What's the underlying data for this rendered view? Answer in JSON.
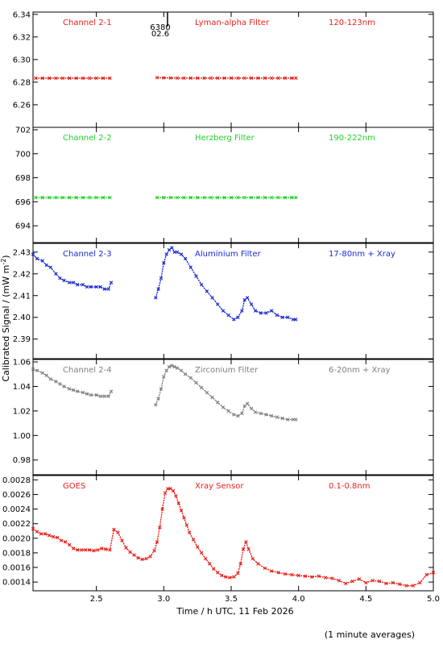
{
  "page": {
    "ylabel_prefix": "Calibrated Signal / (mW m",
    "ylabel_sup": "-2",
    "ylabel_suffix": ")",
    "xlabel": "Time / h UTC, 11 Feb 2026",
    "footnote": "(1 minute averages)",
    "marker_label_top": "6380",
    "marker_label_bottom": "02.6"
  },
  "chart_data": [
    {
      "type": "scatter",
      "label_left": "Channel 2-1",
      "label_mid": "Lyman-alpha Filter",
      "label_right": "120-123nm",
      "color": "#e8201a",
      "ylim": [
        6.24,
        6.342
      ],
      "yticks": [
        "6.26",
        "6.28",
        "6.30",
        "6.32",
        "6.34"
      ],
      "ytick_values": [
        6.26,
        6.28,
        6.3,
        6.32,
        6.34
      ],
      "series": [
        {
          "x": [
            2.05,
            2.1,
            2.15,
            2.2,
            2.25,
            2.3,
            2.35,
            2.4,
            2.45,
            2.5,
            2.55,
            2.6
          ],
          "y": [
            6.2835,
            6.2835,
            6.2835,
            6.2835,
            6.2835,
            6.2835,
            6.2835,
            6.2835,
            6.2835,
            6.2835,
            6.2835,
            6.2835
          ]
        },
        {
          "x": [
            2.95,
            3.0,
            3.05,
            3.1,
            3.15,
            3.2,
            3.25,
            3.3,
            3.35,
            3.4,
            3.45,
            3.5,
            3.55,
            3.6,
            3.65,
            3.7,
            3.75,
            3.8,
            3.85,
            3.9,
            3.95,
            3.98
          ],
          "y": [
            6.284,
            6.2838,
            6.2837,
            6.2836,
            6.2836,
            6.2836,
            6.2836,
            6.2836,
            6.2836,
            6.2836,
            6.2836,
            6.2836,
            6.2836,
            6.2836,
            6.2836,
            6.2836,
            6.2836,
            6.2836,
            6.2836,
            6.2836,
            6.2836,
            6.2836
          ]
        }
      ]
    },
    {
      "type": "scatter",
      "label_left": "Channel 2-2",
      "label_mid": "Herzberg Filter",
      "label_right": "190-222nm",
      "color": "#22d22a",
      "ylim": [
        692.6,
        702.2
      ],
      "yticks": [
        "694",
        "696",
        "698",
        "700",
        "702"
      ],
      "ytick_values": [
        694,
        696,
        698,
        700,
        702
      ],
      "series": [
        {
          "x": [
            2.05,
            2.1,
            2.15,
            2.2,
            2.25,
            2.3,
            2.35,
            2.4,
            2.45,
            2.5,
            2.55,
            2.6
          ],
          "y": [
            696.35,
            696.35,
            696.35,
            696.35,
            696.35,
            696.35,
            696.35,
            696.35,
            696.35,
            696.35,
            696.35,
            696.35
          ]
        },
        {
          "x": [
            2.95,
            3.0,
            3.05,
            3.1,
            3.15,
            3.2,
            3.25,
            3.3,
            3.35,
            3.4,
            3.45,
            3.5,
            3.55,
            3.6,
            3.65,
            3.7,
            3.75,
            3.8,
            3.85,
            3.9,
            3.95,
            3.98
          ],
          "y": [
            696.35,
            696.35,
            696.35,
            696.35,
            696.35,
            696.35,
            696.35,
            696.35,
            696.35,
            696.35,
            696.35,
            696.35,
            696.35,
            696.35,
            696.35,
            696.35,
            696.35,
            696.35,
            696.35,
            696.35,
            696.35,
            696.35
          ]
        }
      ]
    },
    {
      "type": "scatter",
      "label_left": "Channel 2-3",
      "label_mid": "Aluminium Filter",
      "label_right": "17-80nm + Xray",
      "color": "#1a2ad2",
      "ylim": [
        2.381,
        2.434
      ],
      "yticks": [
        "2.39",
        "2.40",
        "2.41",
        "2.42",
        "2.43"
      ],
      "ytick_values": [
        2.39,
        2.4,
        2.41,
        2.42,
        2.43
      ],
      "series": [
        {
          "x": [
            2.03,
            2.06,
            2.1,
            2.13,
            2.16,
            2.2,
            2.23,
            2.26,
            2.3,
            2.33,
            2.36,
            2.4,
            2.43,
            2.46,
            2.5,
            2.53,
            2.56,
            2.59,
            2.61
          ],
          "y": [
            2.429,
            2.427,
            2.426,
            2.424,
            2.423,
            2.42,
            2.418,
            2.417,
            2.416,
            2.416,
            2.415,
            2.415,
            2.414,
            2.414,
            2.414,
            2.414,
            2.413,
            2.413,
            2.416
          ]
        },
        {
          "x": [
            2.94,
            2.96,
            2.98,
            3.0,
            3.02,
            3.04,
            3.06,
            3.08,
            3.1,
            3.13,
            3.16,
            3.2,
            3.24,
            3.28,
            3.32,
            3.36,
            3.4,
            3.44,
            3.48,
            3.52,
            3.55,
            3.58,
            3.6,
            3.62,
            3.65,
            3.68,
            3.72,
            3.76,
            3.8,
            3.84,
            3.88,
            3.92,
            3.96,
            3.98
          ],
          "y": [
            2.409,
            2.413,
            2.418,
            2.425,
            2.429,
            2.431,
            2.432,
            2.43,
            2.43,
            2.429,
            2.427,
            2.423,
            2.419,
            2.415,
            2.412,
            2.409,
            2.406,
            2.403,
            2.401,
            2.399,
            2.4,
            2.403,
            2.408,
            2.409,
            2.406,
            2.403,
            2.402,
            2.402,
            2.403,
            2.401,
            2.4,
            2.4,
            2.399,
            2.399
          ]
        }
      ]
    },
    {
      "type": "scatter",
      "label_left": "Channel 2-4",
      "label_mid": "Zirconium Filter",
      "label_right": "6-20nm + Xray",
      "color": "#808080",
      "ylim": [
        0.968,
        1.062
      ],
      "yticks": [
        "0.98",
        "1.00",
        "1.02",
        "1.04",
        "1.06"
      ],
      "ytick_values": [
        0.98,
        1.0,
        1.02,
        1.04,
        1.06
      ],
      "series": [
        {
          "x": [
            2.03,
            2.06,
            2.1,
            2.13,
            2.16,
            2.2,
            2.23,
            2.26,
            2.3,
            2.33,
            2.36,
            2.4,
            2.43,
            2.46,
            2.5,
            2.53,
            2.56,
            2.59,
            2.61
          ],
          "y": [
            1.054,
            1.053,
            1.051,
            1.049,
            1.046,
            1.044,
            1.042,
            1.04,
            1.038,
            1.037,
            1.036,
            1.035,
            1.034,
            1.033,
            1.033,
            1.032,
            1.032,
            1.032,
            1.036
          ]
        },
        {
          "x": [
            2.94,
            2.96,
            2.98,
            3.0,
            3.02,
            3.04,
            3.06,
            3.08,
            3.1,
            3.13,
            3.16,
            3.2,
            3.24,
            3.28,
            3.32,
            3.36,
            3.4,
            3.44,
            3.48,
            3.52,
            3.55,
            3.58,
            3.6,
            3.62,
            3.65,
            3.68,
            3.72,
            3.76,
            3.8,
            3.84,
            3.88,
            3.92,
            3.96,
            3.98
          ],
          "y": [
            1.025,
            1.03,
            1.038,
            1.048,
            1.053,
            1.056,
            1.057,
            1.056,
            1.055,
            1.053,
            1.05,
            1.047,
            1.043,
            1.039,
            1.035,
            1.031,
            1.027,
            1.023,
            1.02,
            1.017,
            1.016,
            1.018,
            1.024,
            1.026,
            1.022,
            1.019,
            1.018,
            1.017,
            1.016,
            1.015,
            1.014,
            1.013,
            1.013,
            1.013
          ]
        }
      ]
    },
    {
      "type": "scatter",
      "label_left": "GOES",
      "label_mid": "Xray Sensor",
      "label_right": "0.1-0.8nm",
      "color": "#e8201a",
      "ylim": [
        0.00128,
        0.00286
      ],
      "yticks": [
        "0.0014",
        "0.0016",
        "0.0018",
        "0.0020",
        "0.0022",
        "0.0024",
        "0.0026",
        "0.0028"
      ],
      "ytick_values": [
        0.0014,
        0.0016,
        0.0018,
        0.002,
        0.0022,
        0.0024,
        0.0026,
        0.0028
      ],
      "xlim": [
        2.03,
        5.0
      ],
      "xticks": [
        "2.5",
        "3.0",
        "3.5",
        "4.0",
        "4.5",
        "5.0"
      ],
      "xtick_values": [
        2.5,
        3.0,
        3.5,
        4.0,
        4.5,
        5.0
      ],
      "series": [
        {
          "x": [
            2.03,
            2.06,
            2.09,
            2.12,
            2.15,
            2.18,
            2.21,
            2.24,
            2.27,
            2.3,
            2.33,
            2.36,
            2.39,
            2.42,
            2.45,
            2.48,
            2.51,
            2.54,
            2.57,
            2.6,
            2.63,
            2.66,
            2.69,
            2.72,
            2.75,
            2.78,
            2.81,
            2.84,
            2.87,
            2.9,
            2.93,
            2.95,
            2.97,
            2.99,
            3.01,
            3.03,
            3.05,
            3.07,
            3.09,
            3.11,
            3.13,
            3.15,
            3.17,
            3.19,
            3.22,
            3.25,
            3.28,
            3.31,
            3.34,
            3.37,
            3.4,
            3.43,
            3.46,
            3.49,
            3.52,
            3.55,
            3.57,
            3.59,
            3.61,
            3.63,
            3.66,
            3.7,
            3.75,
            3.8,
            3.85,
            3.9,
            3.95,
            4.0,
            4.05,
            4.1,
            4.15,
            4.2,
            4.25,
            4.3,
            4.35,
            4.4,
            4.45,
            4.5,
            4.55,
            4.6,
            4.65,
            4.7,
            4.75,
            4.8,
            4.85,
            4.9,
            4.95,
            5.0
          ],
          "y": [
            0.00213,
            0.00209,
            0.00206,
            0.00206,
            0.00204,
            0.00202,
            0.00201,
            0.00197,
            0.00195,
            0.00191,
            0.00186,
            0.00184,
            0.00184,
            0.00184,
            0.00184,
            0.00183,
            0.00184,
            0.00186,
            0.00185,
            0.00184,
            0.00212,
            0.00208,
            0.00197,
            0.00187,
            0.00181,
            0.00177,
            0.00173,
            0.00171,
            0.00172,
            0.00175,
            0.00183,
            0.00195,
            0.00215,
            0.0024,
            0.00262,
            0.00268,
            0.00268,
            0.00265,
            0.00258,
            0.00248,
            0.00238,
            0.00228,
            0.00218,
            0.00208,
            0.00198,
            0.00188,
            0.0018,
            0.00172,
            0.00165,
            0.00158,
            0.00153,
            0.00149,
            0.00147,
            0.00146,
            0.00147,
            0.00152,
            0.00165,
            0.00185,
            0.00195,
            0.00185,
            0.00172,
            0.00165,
            0.00159,
            0.00155,
            0.00153,
            0.00151,
            0.0015,
            0.00149,
            0.00148,
            0.00147,
            0.00148,
            0.00146,
            0.00145,
            0.00142,
            0.00138,
            0.00141,
            0.00144,
            0.00139,
            0.00142,
            0.00141,
            0.00138,
            0.00139,
            0.00137,
            0.00135,
            0.00135,
            0.00139,
            0.0015,
            0.00153
          ]
        }
      ]
    }
  ]
}
